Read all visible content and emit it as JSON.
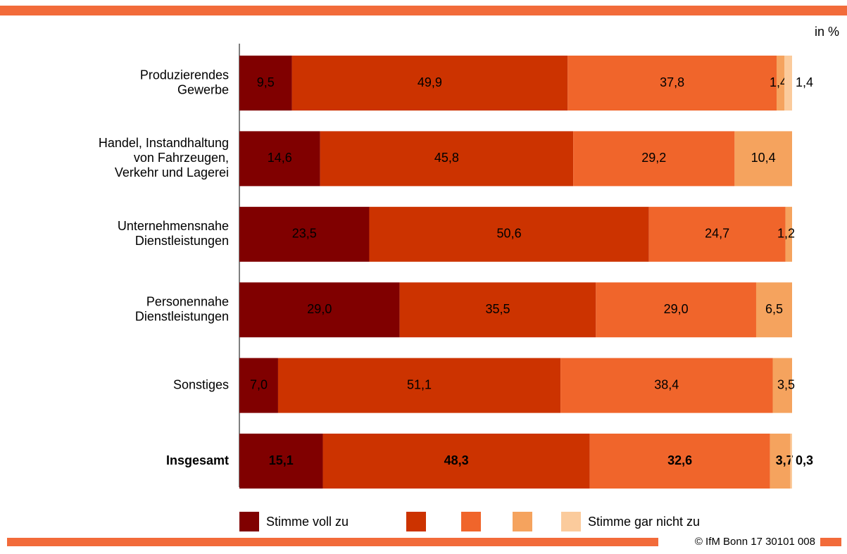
{
  "chart_data": {
    "type": "bar",
    "orientation": "horizontal",
    "stacked": true,
    "unit_label": "in %",
    "footer": "© IfM Bonn 17 30101 008",
    "categories": [
      [
        "Produzierendes",
        "Gewerbe"
      ],
      [
        "Handel, Instandhaltung",
        "von Fahrzeugen,",
        "Verkehr und Lagerei"
      ],
      [
        "Unternehmensnahe",
        "Dienstleistungen"
      ],
      [
        "Personennahe",
        "Dienstleistungen"
      ],
      [
        "Sonstiges"
      ],
      [
        "Insgesamt"
      ]
    ],
    "xlim": [
      0,
      100
    ],
    "legend": "bottom",
    "series": [
      {
        "name": "Stimme voll zu",
        "color": "#800000",
        "values": [
          9.5,
          14.6,
          23.5,
          29.0,
          7.0,
          15.1
        ],
        "value_labels": [
          "9,5",
          "14,6",
          "23,5",
          "29,0",
          "7,0",
          "15,1"
        ]
      },
      {
        "name": null,
        "color": "#cc3300",
        "values": [
          49.9,
          45.8,
          50.6,
          35.5,
          51.1,
          48.3
        ],
        "value_labels": [
          "49,9",
          "45,8",
          "50,6",
          "35,5",
          "51,1",
          "48,3"
        ]
      },
      {
        "name": null,
        "color": "#f0652b",
        "values": [
          37.8,
          29.2,
          24.7,
          29.0,
          38.4,
          32.6
        ],
        "value_labels": [
          "37,8",
          "29,2",
          "24,7",
          "29,0",
          "38,4",
          "32,6"
        ]
      },
      {
        "name": null,
        "color": "#f5a35e",
        "values": [
          1.4,
          10.4,
          1.2,
          6.5,
          3.5,
          3.7
        ],
        "value_labels": [
          "1,4",
          "10,4",
          "1,2",
          "6,5",
          "3,5",
          "3,7"
        ]
      },
      {
        "name": "Stimme gar nicht zu",
        "color": "#fbcb9c",
        "values": [
          1.4,
          0,
          0,
          0,
          0,
          0.3
        ],
        "value_labels": [
          "1,4",
          null,
          null,
          null,
          null,
          "0,3"
        ]
      }
    ]
  }
}
